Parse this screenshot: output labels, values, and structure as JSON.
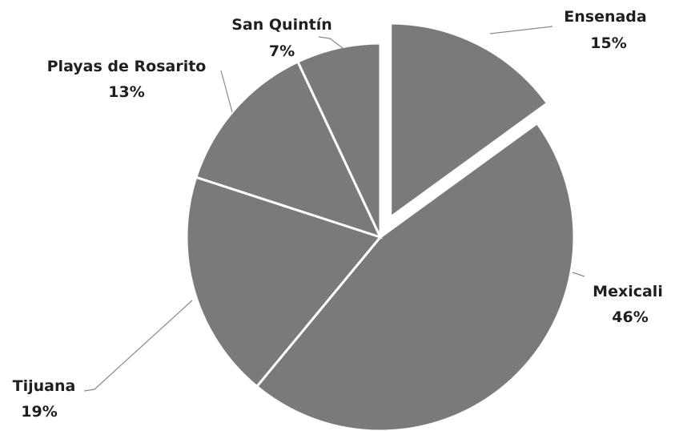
{
  "chart_data": {
    "type": "pie",
    "title": "",
    "categories": [
      "Ensenada",
      "Mexicali",
      "Tijuana",
      "Playas de Rosarito",
      "San Quintín"
    ],
    "values": [
      15,
      46,
      19,
      13,
      7
    ],
    "labels": [
      "15%",
      "46%",
      "19%",
      "13%",
      "7%"
    ],
    "exploded": [
      "Ensenada"
    ],
    "colors": {
      "slice": "#7a7a7a",
      "border": "#ffffff",
      "leader": "#8a8a8a",
      "label": "#1f1f1f"
    },
    "legend": "none"
  }
}
